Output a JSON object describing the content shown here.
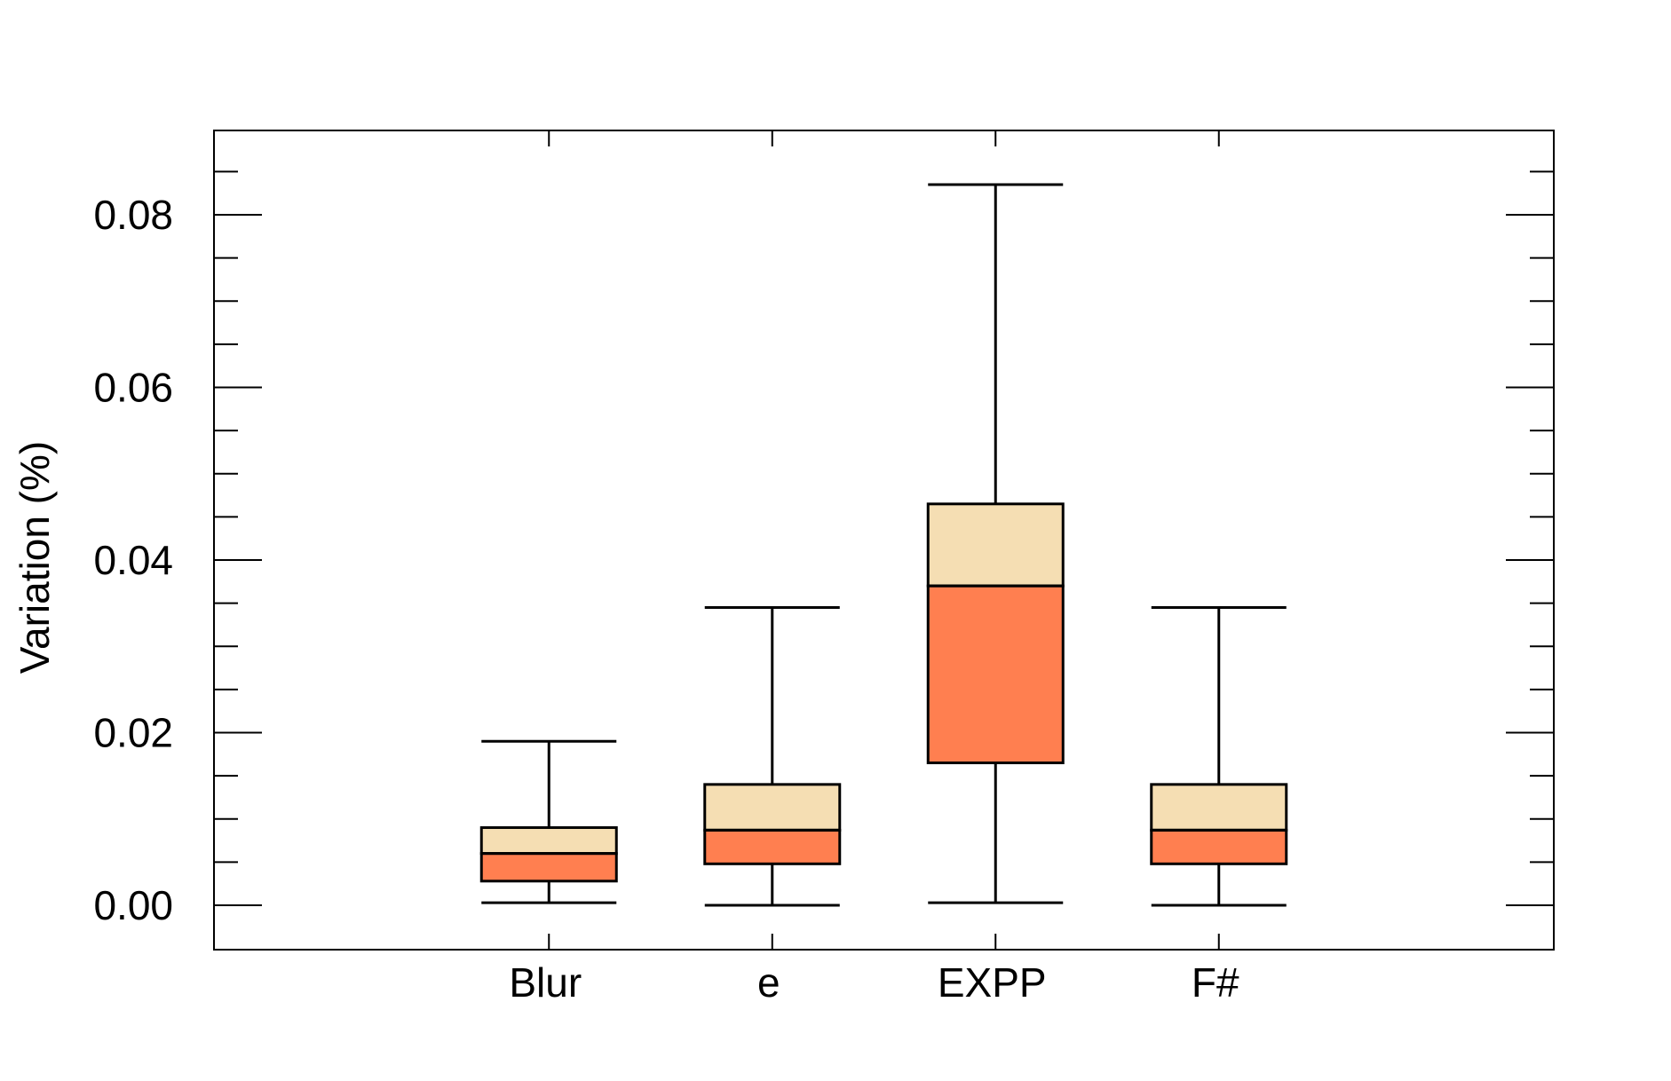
{
  "chart_data": {
    "type": "box",
    "ylabel": "Variation (%)",
    "xlabel": "",
    "ylim": [
      -0.005,
      0.09
    ],
    "yticks": [
      "0.00",
      "0.02",
      "0.04",
      "0.06",
      "0.08"
    ],
    "minor_tick_step": 0.005,
    "grid": false,
    "legend": "none",
    "colors": {
      "lower_box": "#FF7F50",
      "upper_box": "#F5DEB3",
      "stroke": "#000000"
    },
    "categories": [
      "Blur",
      "e",
      "EXPP",
      "F#"
    ],
    "boxes": [
      {
        "category": "Blur",
        "min": 0.0003,
        "q1": 0.0028,
        "median": 0.006,
        "q3": 0.009,
        "max": 0.019
      },
      {
        "category": "e",
        "min": 0.0,
        "q1": 0.0048,
        "median": 0.0087,
        "q3": 0.014,
        "max": 0.0345
      },
      {
        "category": "EXPP",
        "min": 0.0003,
        "q1": 0.0165,
        "median": 0.037,
        "q3": 0.0465,
        "max": 0.0835
      },
      {
        "category": "F#",
        "min": 0.0,
        "q1": 0.0048,
        "median": 0.0087,
        "q3": 0.014,
        "max": 0.0345
      }
    ]
  }
}
